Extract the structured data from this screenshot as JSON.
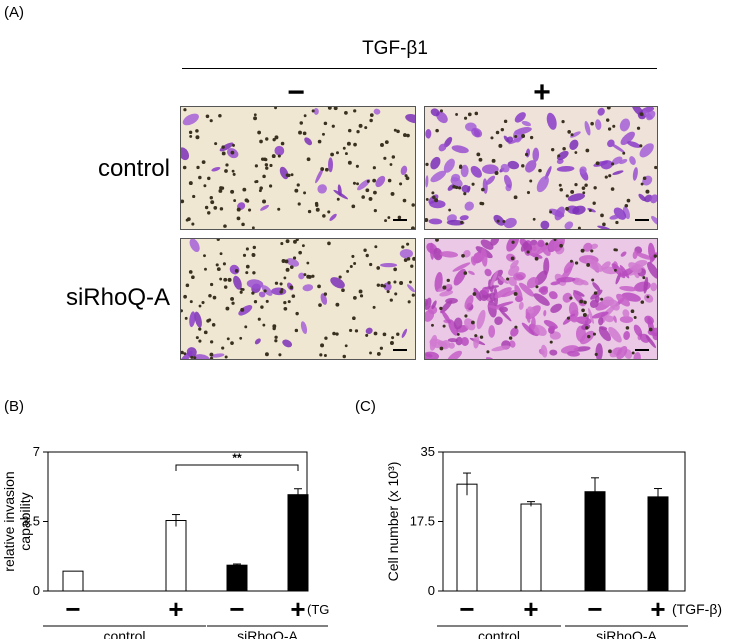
{
  "panel_labels": {
    "a": "(A)",
    "b": "(B)",
    "c": "(C)"
  },
  "panel_a": {
    "treatment_label": "TGF-β1",
    "minus": "−",
    "plus": "+",
    "rows": [
      "control",
      "siRhoQ-A"
    ]
  },
  "chart_data": [
    {
      "type": "bar",
      "categories": [
        "−",
        "+",
        "−",
        "+"
      ],
      "groups": [
        "control",
        "siRhoQ-A"
      ],
      "treatment_label": "(TGF-β)",
      "ylabel": "relative invasion\ncapability",
      "ylim": [
        0,
        7
      ],
      "yticks": [
        "0",
        "3.5",
        "7"
      ],
      "values": [
        1.0,
        3.55,
        1.3,
        4.85
      ],
      "errors": [
        0,
        0.3,
        0.06,
        0.3
      ],
      "fills": [
        "#ffffff",
        "#ffffff",
        "#000000",
        "#000000"
      ],
      "significance": {
        "from": 1,
        "to": 3,
        "label": "**"
      }
    },
    {
      "type": "bar",
      "categories": [
        "−",
        "+",
        "−",
        "+"
      ],
      "groups": [
        "control",
        "siRhoQ-A"
      ],
      "treatment_label": "(TGF-β)",
      "ylabel": "Cell number (x 10³)",
      "ylim": [
        0,
        35
      ],
      "yticks": [
        "0",
        "17.5",
        "35"
      ],
      "values": [
        26.9,
        21.9,
        25.0,
        23.7
      ],
      "errors": [
        2.8,
        0.6,
        3.5,
        2.1
      ],
      "fills": [
        "#ffffff",
        "#ffffff",
        "#000000",
        "#000000"
      ]
    }
  ]
}
